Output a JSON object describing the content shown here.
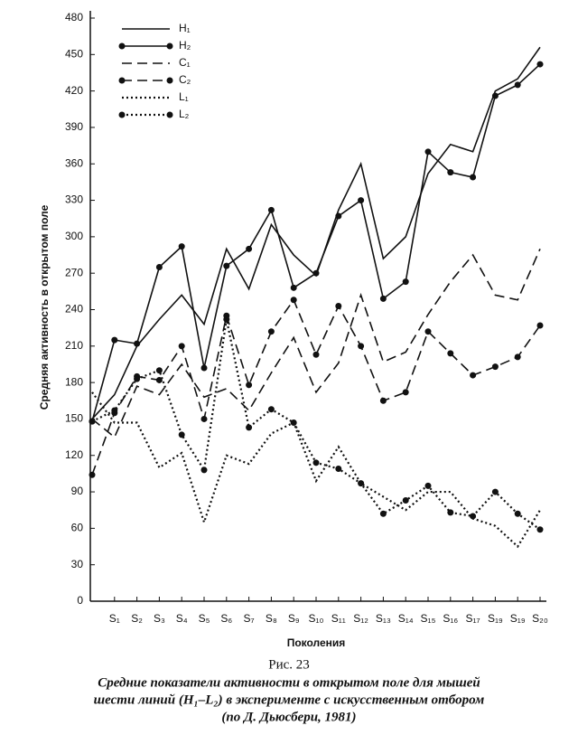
{
  "chart_data": {
    "type": "line",
    "y_label": "Средняя активность в открытом поле",
    "x_label": "Поколения",
    "figure_number": "Рис. 23",
    "caption": [
      "Средние показатели активности в открытом поле для мышей",
      "шести линий (H₁–L₂) в эксперименте с искусственным отбором",
      "(по Д. Дьюсбери, 1981)"
    ],
    "categories": [
      null,
      "S₁",
      "S₂",
      "S₃",
      "S₄",
      "S₅",
      "S₆",
      "S₇",
      "S₈",
      "S₉",
      "S₁₀",
      "S₁₁",
      "S₁₂",
      "S₁₃",
      "S₁₄",
      "S₁₅",
      "S₁₆",
      "S₁₇",
      "S₁₉",
      "S₁₉",
      "S₂₀"
    ],
    "ylim": [
      0,
      480
    ],
    "yticks": [
      0,
      30,
      60,
      90,
      120,
      150,
      180,
      210,
      240,
      270,
      300,
      330,
      360,
      390,
      420,
      450,
      480
    ],
    "series": [
      {
        "name": "H₁",
        "color": "#111111",
        "dash": "solid",
        "markers": false,
        "values": [
          150,
          170,
          210,
          232,
          252,
          228,
          290,
          257,
          310,
          285,
          268,
          322,
          360,
          282,
          300,
          352,
          376,
          370,
          420,
          430,
          456
        ]
      },
      {
        "name": "H₂",
        "color": "#111111",
        "dash": "solid",
        "markers": true,
        "values": [
          148,
          215,
          212,
          275,
          292,
          192,
          276,
          290,
          322,
          258,
          270,
          317,
          330,
          249,
          263,
          370,
          353,
          349,
          416,
          425,
          442
        ]
      },
      {
        "name": "C₁",
        "color": "#111111",
        "dash": "dashed",
        "markers": false,
        "values": [
          150,
          135,
          177,
          170,
          195,
          168,
          175,
          157,
          188,
          217,
          172,
          196,
          252,
          197,
          205,
          236,
          263,
          285,
          252,
          248,
          290
        ]
      },
      {
        "name": "C₂",
        "color": "#111111",
        "dash": "dashed",
        "markers": true,
        "values": [
          104,
          155,
          185,
          182,
          210,
          150,
          235,
          178,
          222,
          248,
          203,
          243,
          210,
          165,
          172,
          222,
          204,
          186,
          193,
          201,
          227
        ]
      },
      {
        "name": "L₁",
        "color": "#111111",
        "dash": "dotted",
        "markers": false,
        "values": [
          172,
          147,
          147,
          110,
          122,
          65,
          120,
          113,
          138,
          147,
          99,
          127,
          97,
          86,
          75,
          90,
          90,
          68,
          62,
          45,
          75
        ]
      },
      {
        "name": "L₂",
        "color": "#111111",
        "dash": "dotted",
        "markers": true,
        "values": [
          148,
          157,
          183,
          190,
          137,
          108,
          232,
          143,
          158,
          147,
          114,
          109,
          97,
          72,
          83,
          95,
          73,
          70,
          90,
          72,
          59
        ]
      }
    ]
  }
}
